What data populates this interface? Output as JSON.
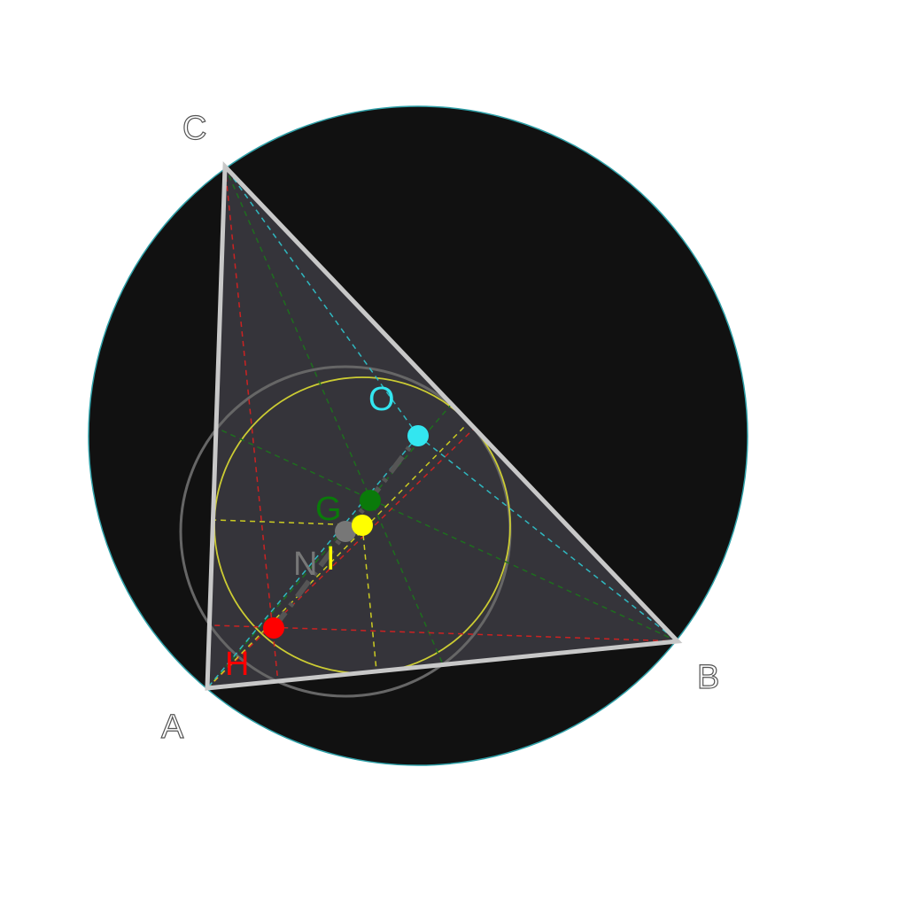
{
  "diagram": {
    "vertices": {
      "A": {
        "label": "A"
      },
      "B": {
        "label": "B"
      },
      "C": {
        "label": "C"
      }
    },
    "centers": {
      "circumcenter": {
        "label": "O",
        "color": "#33e6f0"
      },
      "centroid": {
        "label": "G",
        "color": "#0a7a0a"
      },
      "incenter": {
        "label": "I",
        "color": "#ffff00"
      },
      "nine_point_center": {
        "label": "N",
        "color": "#777777"
      },
      "orthocenter": {
        "label": "H",
        "color": "#ff0000"
      }
    },
    "colors": {
      "circumcircle_fill": "#111111",
      "circumcircle_stroke": "#2fa0a8",
      "triangle_fill": "#35343a",
      "triangle_stroke": "#c8c8c8",
      "incircle": "#cccc33",
      "nine_point_circle": "#666666",
      "euler_line": "#555555",
      "medians": "#1e6e1e",
      "altitudes": "#cc2222",
      "bisectors": "#cccc22",
      "perp_bisectors": "#2fb8c0"
    }
  }
}
